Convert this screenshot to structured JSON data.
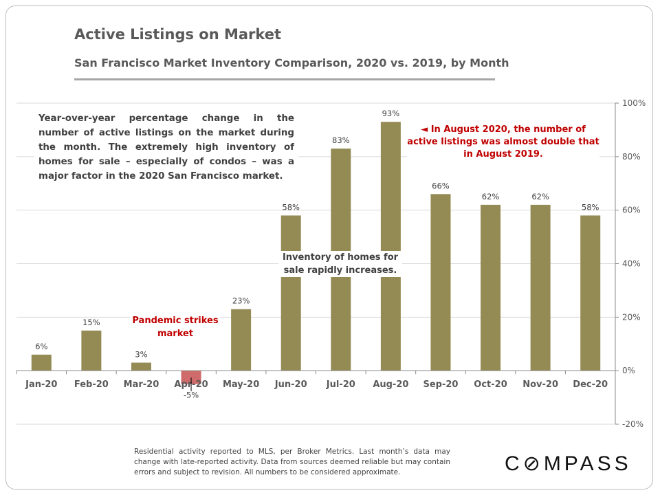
{
  "title": "Active Listings on Market",
  "subtitle": "San Francisco Market Inventory Comparison,  2020 vs. 2019, by Month",
  "annotations": {
    "description": "Year-over-year percentage change in the number of active listings on the market during the month. The extremely high inventory of homes for sale – especially of condos – was a major factor in the 2020 San Francisco market.",
    "inventory": "Inventory of homes for sale rapidly increases.",
    "august": "◄ In August 2020, the number of active listings was almost double that in August 2019.",
    "pandemic": "Pandemic strikes market"
  },
  "footer": "Residential activity reported to MLS, per Broker Metrics. Last month’s data may change with late-reported activity. Data from sources deemed reliable but may contain errors and subject to revision. All numbers to be considered approximate.",
  "logo": "COMPASS",
  "chart_data": {
    "type": "bar",
    "categories": [
      "Jan-20",
      "Feb-20",
      "Mar-20",
      "Apr-20",
      "May-20",
      "Jun-20",
      "Jul-20",
      "Aug-20",
      "Sep-20",
      "Oct-20",
      "Nov-20",
      "Dec-20"
    ],
    "values": [
      6,
      15,
      3,
      -5,
      23,
      58,
      83,
      93,
      66,
      62,
      62,
      58
    ],
    "data_labels": [
      "6%",
      "15%",
      "3%",
      "-5%",
      "23%",
      "58%",
      "83%",
      "93%",
      "66%",
      "62%",
      "62%",
      "58%"
    ],
    "ylim": [
      -20,
      100
    ],
    "yticks": [
      -20,
      0,
      20,
      40,
      60,
      80,
      100
    ],
    "ytick_labels": [
      "-20%",
      "0%",
      "20%",
      "40%",
      "60%",
      "80%",
      "100%"
    ],
    "yaxis_position": "right",
    "grid": true,
    "colors": {
      "positive": "#948a54",
      "negative": "#d06b6b",
      "label_highlight": "#c00000"
    }
  }
}
